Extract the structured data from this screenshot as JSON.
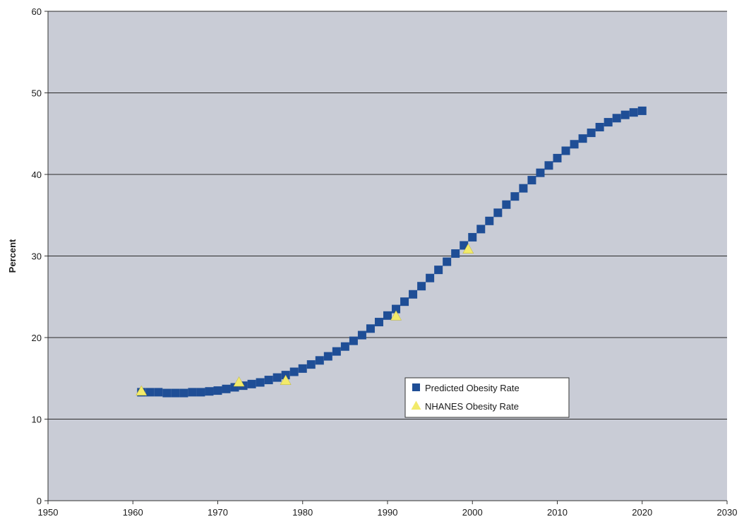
{
  "chart_data": {
    "type": "scatter",
    "title": "",
    "xlabel": "",
    "ylabel": "Percent",
    "xlim": [
      1950,
      2030
    ],
    "ylim": [
      0,
      60
    ],
    "x_ticks": [
      1950,
      1960,
      1970,
      1980,
      1990,
      2000,
      2010,
      2020,
      2030
    ],
    "y_ticks": [
      0,
      10,
      20,
      30,
      40,
      50,
      60
    ],
    "grid": "horizontal",
    "legend_position": "center-right",
    "plot_background": "#c9ccd6",
    "series": [
      {
        "name": "Predicted Obesity Rate",
        "marker": "square",
        "color": "#1f4e96",
        "x": [
          1961,
          1962,
          1963,
          1964,
          1965,
          1966,
          1967,
          1968,
          1969,
          1970,
          1971,
          1972,
          1973,
          1974,
          1975,
          1976,
          1977,
          1978,
          1979,
          1980,
          1981,
          1982,
          1983,
          1984,
          1985,
          1986,
          1987,
          1988,
          1989,
          1990,
          1991,
          1992,
          1993,
          1994,
          1995,
          1996,
          1997,
          1998,
          1999,
          2000,
          2001,
          2002,
          2003,
          2004,
          2005,
          2006,
          2007,
          2008,
          2009,
          2010,
          2011,
          2012,
          2013,
          2014,
          2015,
          2016,
          2017,
          2018,
          2019,
          2020
        ],
        "values": [
          13.3,
          13.3,
          13.3,
          13.2,
          13.2,
          13.2,
          13.3,
          13.3,
          13.4,
          13.5,
          13.7,
          13.9,
          14.1,
          14.3,
          14.5,
          14.8,
          15.1,
          15.4,
          15.8,
          16.2,
          16.7,
          17.2,
          17.7,
          18.3,
          18.9,
          19.6,
          20.3,
          21.1,
          21.9,
          22.7,
          23.5,
          24.4,
          25.3,
          26.3,
          27.3,
          28.3,
          29.3,
          30.3,
          31.3,
          32.3,
          33.3,
          34.3,
          35.3,
          36.3,
          37.3,
          38.3,
          39.3,
          40.2,
          41.1,
          42.0,
          42.9,
          43.7,
          44.4,
          45.1,
          45.8,
          46.4,
          46.9,
          47.3,
          47.6,
          47.8
        ]
      },
      {
        "name": "NHANES Obesity Rate",
        "marker": "triangle",
        "color": "#f2ea6a",
        "x": [
          1961,
          1972.5,
          1978,
          1991,
          1999.5
        ],
        "values": [
          13.4,
          14.5,
          14.7,
          22.6,
          30.8
        ]
      }
    ]
  }
}
